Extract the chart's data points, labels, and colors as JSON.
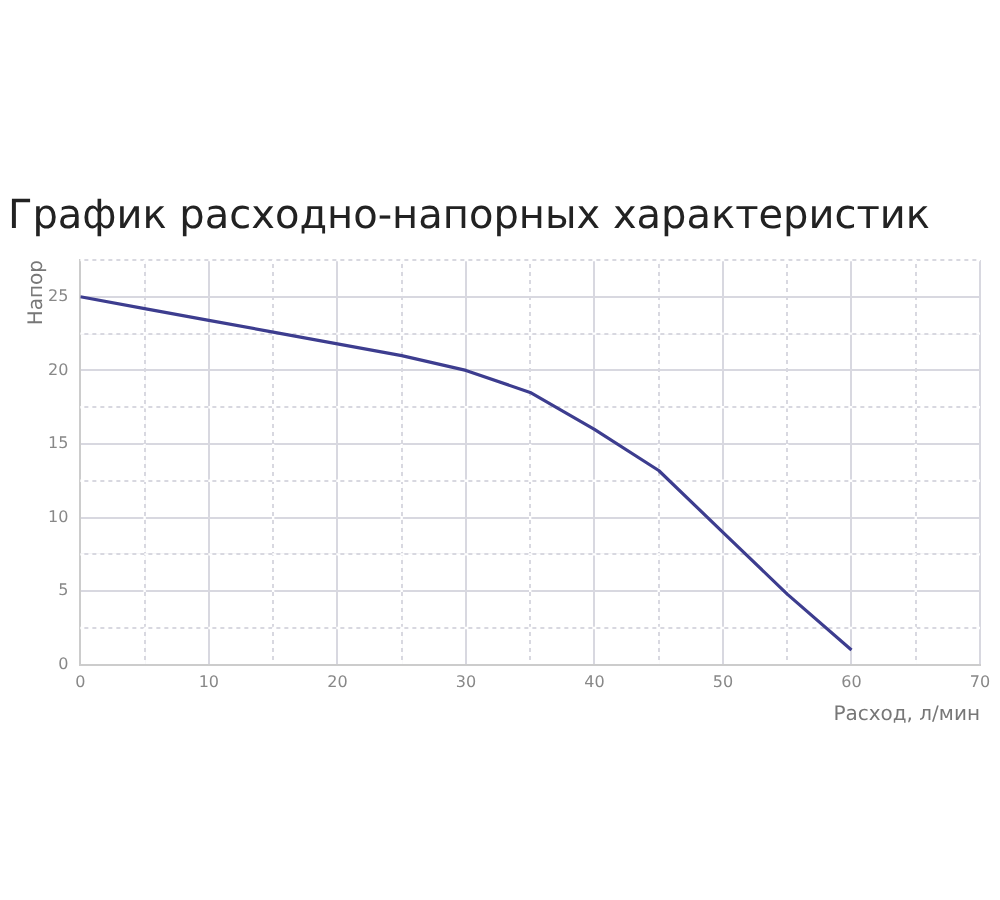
{
  "chart_data": {
    "type": "line",
    "title": "График расходно-напорных характеристик",
    "xlabel": "Расход, л/мин",
    "ylabel": "Напор",
    "x": [
      0,
      5,
      10,
      15,
      20,
      25,
      30,
      35,
      40,
      45,
      50,
      55,
      60
    ],
    "series": [
      {
        "color": "#3d3d8f",
        "values": [
          25,
          24.2,
          23.4,
          22.6,
          21.8,
          21.0,
          20.0,
          18.5,
          16.0,
          13.2,
          9.0,
          4.8,
          1.0
        ]
      }
    ],
    "xlim": [
      0,
      70
    ],
    "ylim": [
      0,
      27.5
    ],
    "xticks": [
      0,
      {
        "value": 5,
        "label": null
      },
      10,
      {
        "value": 15,
        "label": null
      },
      20,
      {
        "value": 25,
        "label": null
      },
      30,
      {
        "value": 35,
        "label": null
      },
      40,
      {
        "value": 45,
        "label": null
      },
      50,
      {
        "value": 55,
        "label": null
      },
      60,
      {
        "value": 65,
        "label": null
      },
      70
    ],
    "yticks": [
      0,
      {
        "value": 2.5,
        "label": null
      },
      5,
      {
        "value": 7.5,
        "label": null
      },
      10,
      {
        "value": 12.5,
        "label": null
      },
      15,
      {
        "value": 17.5,
        "label": null
      },
      20,
      {
        "value": 22.5,
        "label": null
      },
      25,
      {
        "value": 27.5,
        "label": null
      }
    ],
    "grid": true,
    "legend": false,
    "marker": "none",
    "line_style": "solid"
  }
}
